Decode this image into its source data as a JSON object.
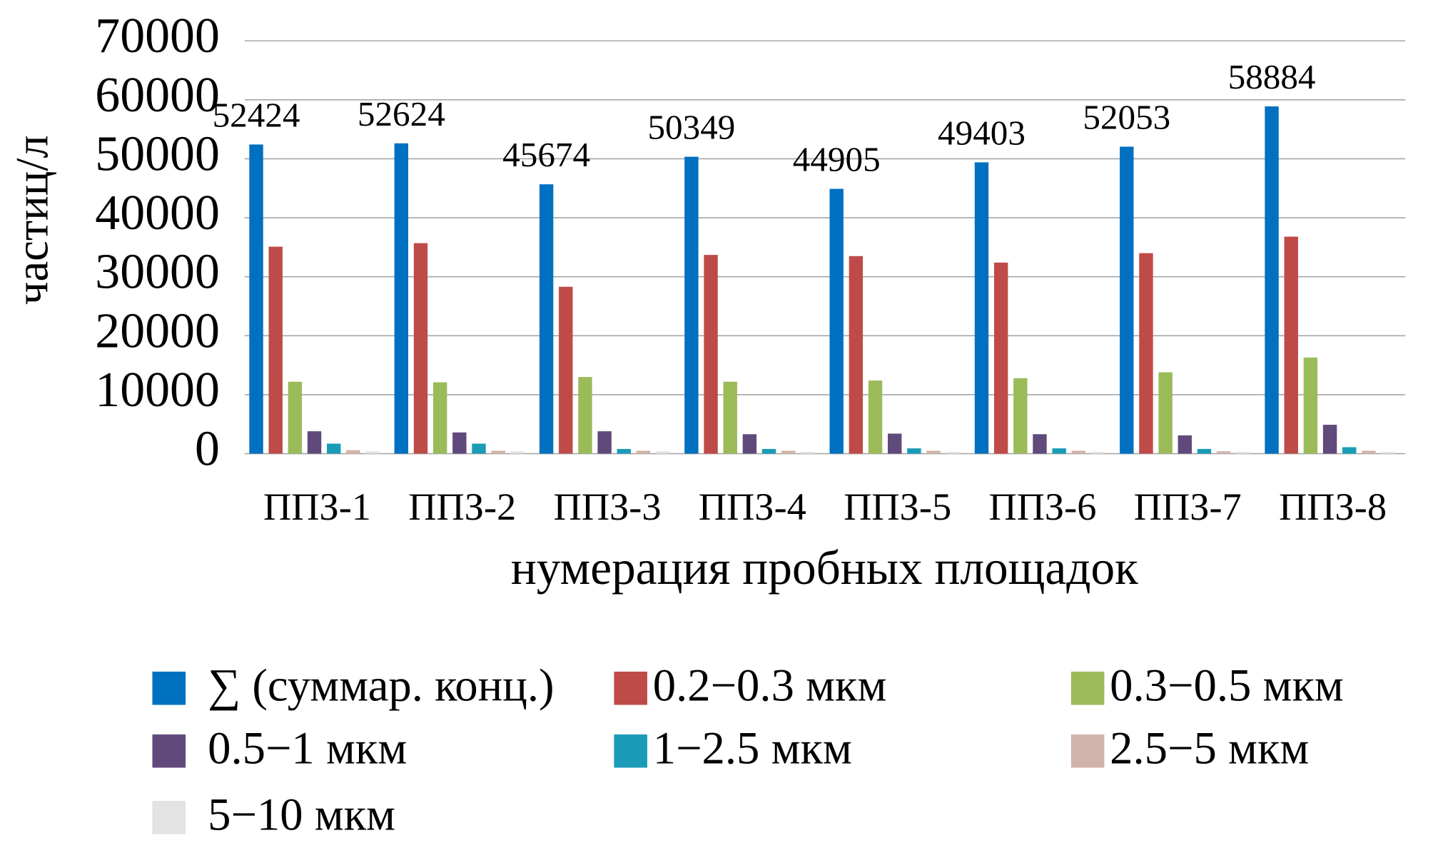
{
  "chart_data": {
    "type": "bar",
    "y_label": "частиц/л",
    "x_label": "нумерация пробных площадок",
    "categories": [
      "ППЗ-1",
      "ППЗ-2",
      "ППЗ-3",
      "ППЗ-4",
      "ППЗ-5",
      "ППЗ-6",
      "ППЗ-7",
      "ППЗ-8"
    ],
    "series": [
      {
        "name": "∑ (суммар. конц.)",
        "color": "#0070c0",
        "values": [
          52424,
          52624,
          45674,
          50349,
          44905,
          49403,
          52053,
          58884
        ]
      },
      {
        "name": "0.2−0.3 мкм",
        "color": "#be4b48",
        "values": [
          35100,
          35700,
          28300,
          33700,
          33500,
          32400,
          34000,
          36800
        ]
      },
      {
        "name": "0.3−0.5 мкм",
        "color": "#9bbb59",
        "values": [
          12200,
          12100,
          13000,
          12200,
          12400,
          12800,
          13800,
          16300
        ]
      },
      {
        "name": "0.5−1 мкм",
        "color": "#604a7b",
        "values": [
          3800,
          3600,
          3800,
          3300,
          3400,
          3300,
          3100,
          4900
        ]
      },
      {
        "name": "1−2.5 мкм",
        "color": "#1a9cb8",
        "values": [
          1700,
          1700,
          800,
          800,
          900,
          900,
          800,
          1100
        ]
      },
      {
        "name": "2.5−5 мкм",
        "color": "#d1b4a9",
        "values": [
          600,
          500,
          500,
          500,
          500,
          500,
          400,
          500
        ]
      },
      {
        "name": "5−10 мкм",
        "color": "#e3e3e3",
        "values": [
          400,
          400,
          400,
          300,
          300,
          300,
          300,
          300
        ]
      }
    ],
    "ylim": [
      0,
      70000
    ],
    "yticks": [
      0,
      10000,
      20000,
      30000,
      40000,
      50000,
      60000,
      70000
    ],
    "grid": true,
    "data_labels_series": 0
  }
}
